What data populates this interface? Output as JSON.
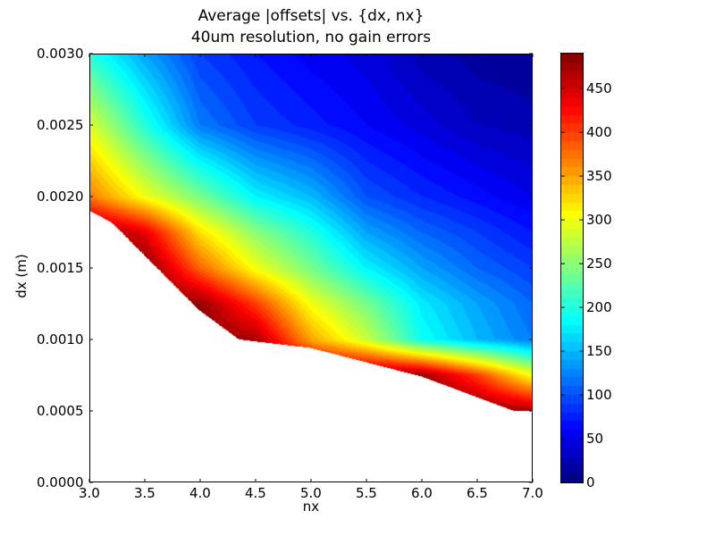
{
  "chart_data": {
    "type": "contourf",
    "title": "Average |offsets| vs. {dx, nx}",
    "subtitle": "40um resolution, no gain errors",
    "xlabel": "nx",
    "ylabel": "dx (m)",
    "xlim": [
      3.0,
      7.0
    ],
    "ylim": [
      0.0,
      0.003
    ],
    "xticks": [
      "3.0",
      "3.5",
      "4.0",
      "4.5",
      "5.0",
      "5.5",
      "6.0",
      "6.5",
      "7.0"
    ],
    "yticks": [
      "0.0000",
      "0.0005",
      "0.0010",
      "0.0015",
      "0.0020",
      "0.0025",
      "0.0030"
    ],
    "colormap": "jet",
    "colorbar": {
      "range": [
        0,
        490
      ],
      "level_step": 10,
      "ticks": [
        "0",
        "50",
        "100",
        "150",
        "200",
        "250",
        "300",
        "350",
        "400",
        "450"
      ]
    },
    "grid": {
      "nx": [
        3.0,
        3.5,
        4.0,
        4.5,
        5.0,
        5.5,
        6.0,
        6.5,
        7.0
      ],
      "dx": [
        0.0005,
        0.00075,
        0.001,
        0.00125,
        0.0015,
        0.00175,
        0.002,
        0.0025,
        0.003
      ],
      "z": [
        [
          null,
          null,
          null,
          null,
          null,
          null,
          null,
          null,
          470
        ],
        [
          null,
          null,
          null,
          null,
          null,
          null,
          480,
          400,
          300
        ],
        [
          null,
          null,
          null,
          470,
          350,
          280,
          190,
          150,
          120
        ],
        [
          null,
          null,
          480,
          400,
          300,
          240,
          175,
          140,
          110
        ],
        [
          null,
          null,
          380,
          300,
          240,
          180,
          140,
          110,
          90
        ],
        [
          null,
          440,
          320,
          250,
          200,
          140,
          110,
          90,
          70
        ],
        [
          370,
          300,
          240,
          180,
          150,
          100,
          80,
          65,
          50
        ],
        [
          290,
          200,
          120,
          90,
          75,
          60,
          45,
          30,
          25
        ],
        [
          200,
          140,
          90,
          70,
          55,
          45,
          25,
          15,
          10
        ]
      ]
    },
    "valid_region_lower_boundary": [
      [
        3.0,
        0.0019
      ],
      [
        3.2,
        0.00182
      ],
      [
        4.0,
        0.0012
      ],
      [
        4.35,
        0.001
      ],
      [
        5.0,
        0.00094
      ],
      [
        6.0,
        0.00074
      ],
      [
        6.83,
        0.0005
      ],
      [
        7.0,
        0.0005
      ]
    ]
  }
}
